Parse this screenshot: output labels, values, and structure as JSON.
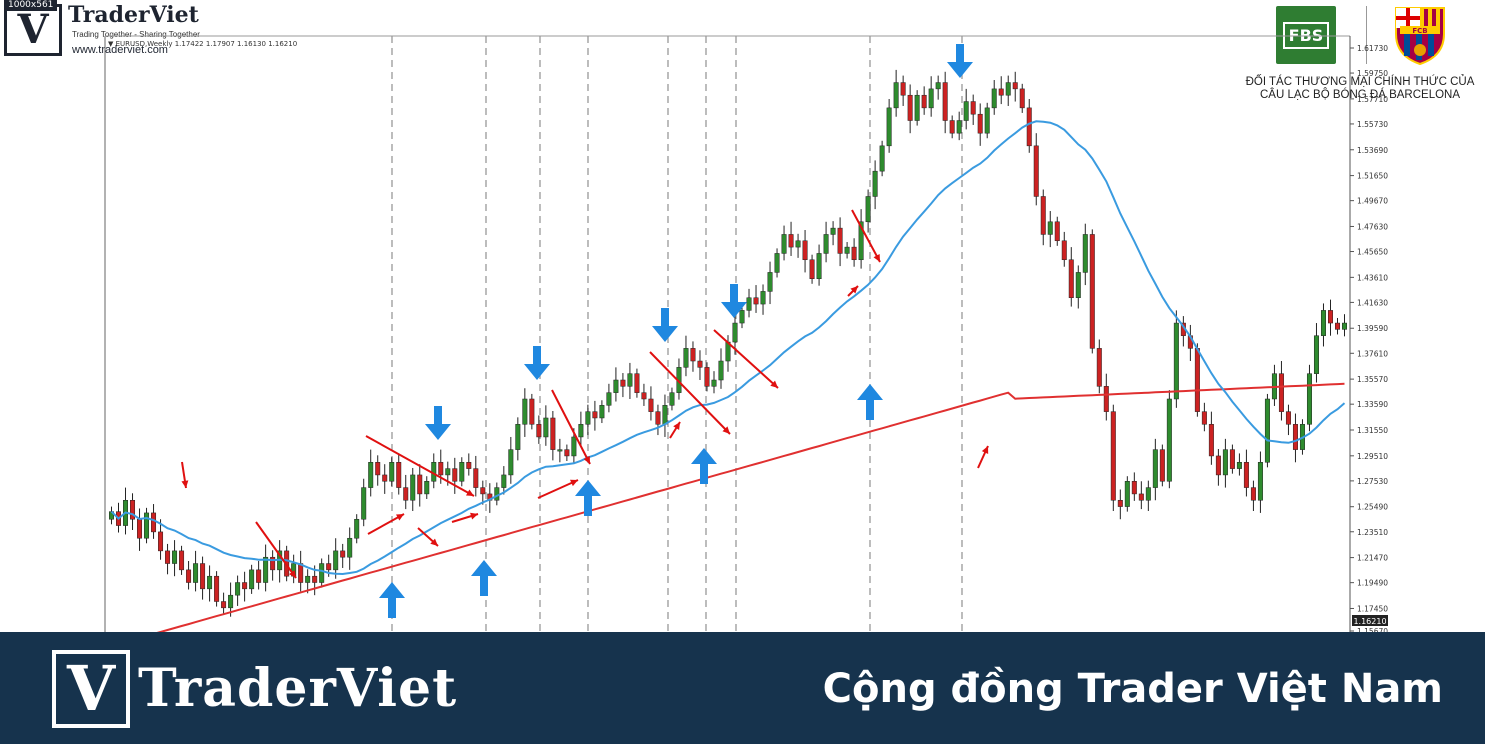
{
  "header": {
    "resolution_tag": "1000x561",
    "logo_letter": "V",
    "brand": "TraderViet",
    "tagline": "Trading Together - Sharing Together",
    "website": "www.traderviet.com",
    "symbol_line": "▼ EURUSD,Weekly  1.17422 1.17907 1.16130 1.16210"
  },
  "partner": {
    "fbs_label": "FBS",
    "fcb_label": "FCB",
    "text_line1": "ĐỐI TÁC THƯƠNG MẠI CHÍNH THỨC CỦA",
    "text_line2": "CÂU LẠC BỘ BÓNG ĐÁ BARCELONA"
  },
  "footer": {
    "logo_letter": "V",
    "brand": "TraderViet",
    "slogan": "Cộng đồng Trader Việt Nam"
  },
  "colors": {
    "bull_candle": "#2e8b2e",
    "bear_candle": "#cc2222",
    "ma_fast": "#3a9be0",
    "ma_slow": "#e03030",
    "signal_arrow": "#1f88e0",
    "annotation": "#e01010",
    "footer_bg": "#16334d"
  },
  "chart_data": {
    "type": "candlestick",
    "symbol": "EURUSD",
    "timeframe": "Weekly",
    "ylim": [
      1.1567,
      1.625
    ],
    "y_ticks": [
      "1.61730",
      "1.59750",
      "1.57710",
      "1.55730",
      "1.53690",
      "1.51650",
      "1.49670",
      "1.47630",
      "1.45650",
      "1.43610",
      "1.41630",
      "1.39590",
      "1.37610",
      "1.35570",
      "1.33590",
      "1.31550",
      "1.29510",
      "1.27530",
      "1.25490",
      "1.23510",
      "1.21470",
      "1.19490",
      "1.17450",
      "1.15670"
    ],
    "current_price": "1.16210",
    "closes": [
      1.251,
      1.24,
      1.26,
      1.245,
      1.23,
      1.25,
      1.235,
      1.22,
      1.21,
      1.22,
      1.205,
      1.195,
      1.21,
      1.19,
      1.2,
      1.18,
      1.175,
      1.185,
      1.195,
      1.19,
      1.205,
      1.195,
      1.215,
      1.205,
      1.22,
      1.2,
      1.21,
      1.195,
      1.2,
      1.195,
      1.21,
      1.205,
      1.22,
      1.215,
      1.23,
      1.245,
      1.27,
      1.29,
      1.28,
      1.275,
      1.29,
      1.27,
      1.26,
      1.28,
      1.265,
      1.275,
      1.29,
      1.28,
      1.285,
      1.275,
      1.29,
      1.285,
      1.27,
      1.265,
      1.26,
      1.27,
      1.28,
      1.3,
      1.32,
      1.34,
      1.32,
      1.31,
      1.325,
      1.3,
      1.3,
      1.295,
      1.31,
      1.32,
      1.33,
      1.325,
      1.335,
      1.345,
      1.355,
      1.35,
      1.36,
      1.345,
      1.34,
      1.33,
      1.32,
      1.335,
      1.345,
      1.365,
      1.38,
      1.37,
      1.365,
      1.35,
      1.355,
      1.37,
      1.385,
      1.4,
      1.41,
      1.42,
      1.415,
      1.425,
      1.44,
      1.455,
      1.47,
      1.46,
      1.465,
      1.45,
      1.435,
      1.455,
      1.47,
      1.475,
      1.455,
      1.46,
      1.45,
      1.48,
      1.5,
      1.52,
      1.54,
      1.57,
      1.59,
      1.58,
      1.56,
      1.58,
      1.57,
      1.585,
      1.59,
      1.56,
      1.55,
      1.56,
      1.575,
      1.565,
      1.55,
      1.57,
      1.585,
      1.58,
      1.59,
      1.585,
      1.57,
      1.54,
      1.5,
      1.47,
      1.48,
      1.465,
      1.45,
      1.42,
      1.44,
      1.47,
      1.38,
      1.35,
      1.33,
      1.26,
      1.255,
      1.275,
      1.265,
      1.26,
      1.27,
      1.3,
      1.275,
      1.34,
      1.4,
      1.39,
      1.38,
      1.33,
      1.32,
      1.295,
      1.28,
      1.3,
      1.285,
      1.29,
      1.27,
      1.26,
      1.29,
      1.34,
      1.36,
      1.33,
      1.32,
      1.3,
      1.32,
      1.36,
      1.39,
      1.41,
      1.4,
      1.395,
      1.4
    ]
  }
}
